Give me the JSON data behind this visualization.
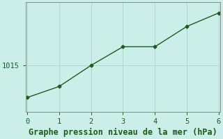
{
  "x": [
    0,
    1,
    2,
    3,
    4,
    5,
    6
  ],
  "y": [
    1011.2,
    1012.5,
    1015.0,
    1017.2,
    1017.2,
    1019.6,
    1021.2
  ],
  "line_color": "#1a5c1a",
  "marker": "D",
  "marker_size": 2.5,
  "bg_color": "#cceee8",
  "grid_color": "#aad8d2",
  "title": "Graphe pression niveau de la mer (hPa)",
  "title_color": "#1a5c1a",
  "title_fontsize": 8.5,
  "ytick_labels": [
    "1015"
  ],
  "ytick_values": [
    1015
  ],
  "xtick_values": [
    0,
    1,
    2,
    3,
    4,
    5,
    6
  ],
  "ylim": [
    1009.5,
    1022.5
  ],
  "xlim": [
    -0.05,
    6.05
  ],
  "axis_color": "#888888",
  "tick_color": "#1a5c1a",
  "tick_fontsize": 7.5,
  "spine_color": "#888888"
}
